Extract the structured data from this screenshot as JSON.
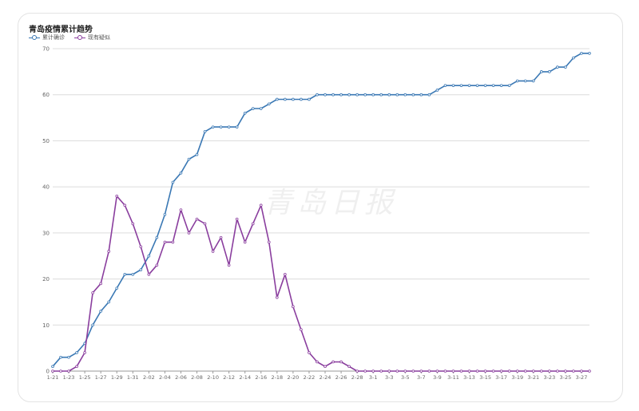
{
  "chart_data": {
    "type": "line",
    "title": "青岛疫情累计趋势",
    "watermark": "青岛日报",
    "x": [
      "1-21",
      "1-22",
      "1-23",
      "1-24",
      "1-25",
      "1-26",
      "1-27",
      "1-28",
      "1-29",
      "1-30",
      "1-31",
      "2-01",
      "2-02",
      "2-03",
      "2-04",
      "2-05",
      "2-06",
      "2-07",
      "2-08",
      "2-09",
      "2-10",
      "2-11",
      "2-12",
      "2-13",
      "2-14",
      "2-15",
      "2-16",
      "2-17",
      "2-18",
      "2-19",
      "2-20",
      "2-21",
      "2-22",
      "2-23",
      "2-24",
      "2-25",
      "2-26",
      "2-27",
      "2-28",
      "2-29",
      "3-1",
      "3-2",
      "3-3",
      "3-4",
      "3-5",
      "3-6",
      "3-7",
      "3-8",
      "3-9",
      "3-10",
      "3-11",
      "3-12",
      "3-13",
      "3-14",
      "3-15",
      "3-16",
      "3-17",
      "3-18",
      "3-19",
      "3-20",
      "3-21",
      "3-22",
      "3-23",
      "3-24",
      "3-25",
      "3-26",
      "3-27",
      "3-28"
    ],
    "xtick_labels": [
      "1-21",
      "1-23",
      "1-25",
      "1-27",
      "1-29",
      "1-31",
      "2-02",
      "2-04",
      "2-06",
      "2-08",
      "2-10",
      "2-12",
      "2-14",
      "2-16",
      "2-18",
      "2-20",
      "2-22",
      "2-24",
      "2-26",
      "2-28",
      "3-1",
      "3-3",
      "3-5",
      "3-7",
      "3-9",
      "3-11",
      "3-13",
      "3-15",
      "3-17",
      "3-19",
      "3-21",
      "3-23",
      "3-25",
      "3-27"
    ],
    "ylim": [
      0,
      70
    ],
    "yticks": [
      "0",
      "10",
      "20",
      "30",
      "40",
      "50",
      "60",
      "70"
    ],
    "grid": true,
    "legend_position": "top-left",
    "series": [
      {
        "name": "累计确诊",
        "color": "#3a78b4",
        "values": [
          1,
          3,
          3,
          4,
          6,
          10,
          13,
          15,
          18,
          21,
          21,
          22,
          25,
          29,
          34,
          41,
          43,
          46,
          47,
          52,
          53,
          53,
          53,
          53,
          56,
          57,
          57,
          58,
          59,
          59,
          59,
          59,
          59,
          60,
          60,
          60,
          60,
          60,
          60,
          60,
          60,
          60,
          60,
          60,
          60,
          60,
          60,
          60,
          61,
          62,
          62,
          62,
          62,
          62,
          62,
          62,
          62,
          62,
          63,
          63,
          63,
          65,
          65,
          66,
          66,
          68,
          69,
          69
        ]
      },
      {
        "name": "现有疑似",
        "color": "#8a3e9e",
        "values": [
          0,
          0,
          0,
          1,
          4,
          17,
          19,
          26,
          38,
          36,
          32,
          27,
          21,
          23,
          28,
          28,
          35,
          30,
          33,
          32,
          26,
          29,
          23,
          33,
          28,
          32,
          36,
          28,
          16,
          21,
          14,
          9,
          4,
          2,
          1,
          2,
          2,
          1,
          0,
          0,
          0,
          0,
          0,
          0,
          0,
          0,
          0,
          0,
          0,
          0,
          0,
          0,
          0,
          0,
          0,
          0,
          0,
          0,
          0,
          0,
          0,
          0,
          0,
          0,
          0,
          0,
          0,
          0
        ]
      }
    ]
  }
}
